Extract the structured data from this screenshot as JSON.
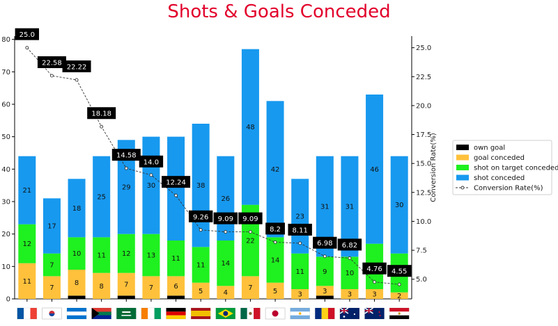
{
  "chart_data": {
    "type": "bar",
    "title": "Shots & Goals Conceded",
    "subtype": "stacked bar with line on secondary axis",
    "categories": [
      "France",
      "South Korea",
      "Honduras",
      "South Africa",
      "Saudi Arabia",
      "Ivory Coast",
      "Germany",
      "Spain",
      "Brazil",
      "Mexico",
      "Japan",
      "Argentina",
      "Romania",
      "Australia",
      "New Zealand",
      "Egypt"
    ],
    "category_icons": [
      "flag-france",
      "flag-south-korea",
      "flag-honduras",
      "flag-south-africa",
      "flag-saudi-arabia",
      "flag-ivory-coast",
      "flag-germany",
      "flag-spain",
      "flag-brazil",
      "flag-mexico",
      "flag-japan",
      "flag-argentina",
      "flag-romania",
      "flag-australia",
      "flag-new-zealand",
      "flag-egypt"
    ],
    "series": [
      {
        "name": "own goal",
        "color": "#000000",
        "values": [
          0,
          0,
          1,
          0,
          1,
          0,
          1,
          0,
          0,
          0,
          0,
          0,
          1,
          0,
          0,
          0
        ]
      },
      {
        "name": "goal conceded",
        "color": "#ffc13b",
        "values": [
          11,
          7,
          8,
          8,
          7,
          7,
          6,
          5,
          4,
          7,
          5,
          3,
          3,
          3,
          3,
          2
        ]
      },
      {
        "name": "shot on target conceded",
        "color": "#1ff01f",
        "values": [
          12,
          7,
          10,
          11,
          12,
          13,
          11,
          11,
          14,
          22,
          14,
          11,
          9,
          10,
          14,
          12
        ]
      },
      {
        "name": "shot conceded",
        "color": "#1799ef",
        "values": [
          21,
          17,
          18,
          25,
          29,
          30,
          32,
          38,
          26,
          48,
          42,
          23,
          31,
          31,
          46,
          30
        ]
      }
    ],
    "segment_labels": [
      [
        "",
        "",
        "",
        "",
        "",
        "",
        "",
        "",
        "",
        "",
        "",
        "",
        "",
        "",
        "",
        ""
      ],
      [
        "11",
        "7",
        "8",
        "8",
        "7",
        "7",
        "6",
        "5",
        "4",
        "7",
        "5",
        "3",
        "3",
        "3",
        "3",
        "2"
      ],
      [
        "12",
        "7",
        "10",
        "11",
        "12",
        "13",
        "11",
        "11",
        "14",
        "22",
        "14",
        "11",
        "9",
        "10",
        "14",
        ""
      ],
      [
        "21",
        "17",
        "18",
        "25",
        "29",
        "30",
        "",
        "38",
        "26",
        "48",
        "42",
        "23",
        "31",
        "31",
        "46",
        "30"
      ]
    ],
    "line": {
      "name": "Conversion Rate(%)",
      "color": "#333333",
      "values": [
        25.0,
        22.58,
        22.22,
        18.18,
        14.58,
        14.0,
        12.24,
        9.26,
        9.09,
        9.09,
        8.2,
        8.11,
        6.98,
        6.82,
        4.76,
        4.55
      ],
      "labels": [
        "25.0",
        "22.58",
        "22.22",
        "18.18",
        "14.58",
        "14.0",
        "12.24",
        "9.26",
        "9.09",
        "9.09",
        "8.2",
        "8.11",
        "6.98",
        "6.82",
        "4.76",
        "4.55"
      ]
    },
    "y_left": {
      "label": "",
      "ylim": [
        0,
        81
      ],
      "ticks": [
        "0",
        "10",
        "20",
        "30",
        "40",
        "50",
        "60",
        "70",
        "80"
      ]
    },
    "y_right": {
      "label": "Conversion Rate(%)",
      "ylim": [
        3.3,
        26.0
      ],
      "ticks": [
        "5.0",
        "7.5",
        "10.0",
        "12.5",
        "15.0",
        "17.5",
        "20.0",
        "22.5",
        "25.0"
      ]
    },
    "legend": {
      "placement": "right",
      "entries": [
        "own goal",
        "goal conceded",
        "shot on target conceded",
        "shot conceded",
        "Conversion Rate(%)"
      ]
    },
    "grid": false
  }
}
